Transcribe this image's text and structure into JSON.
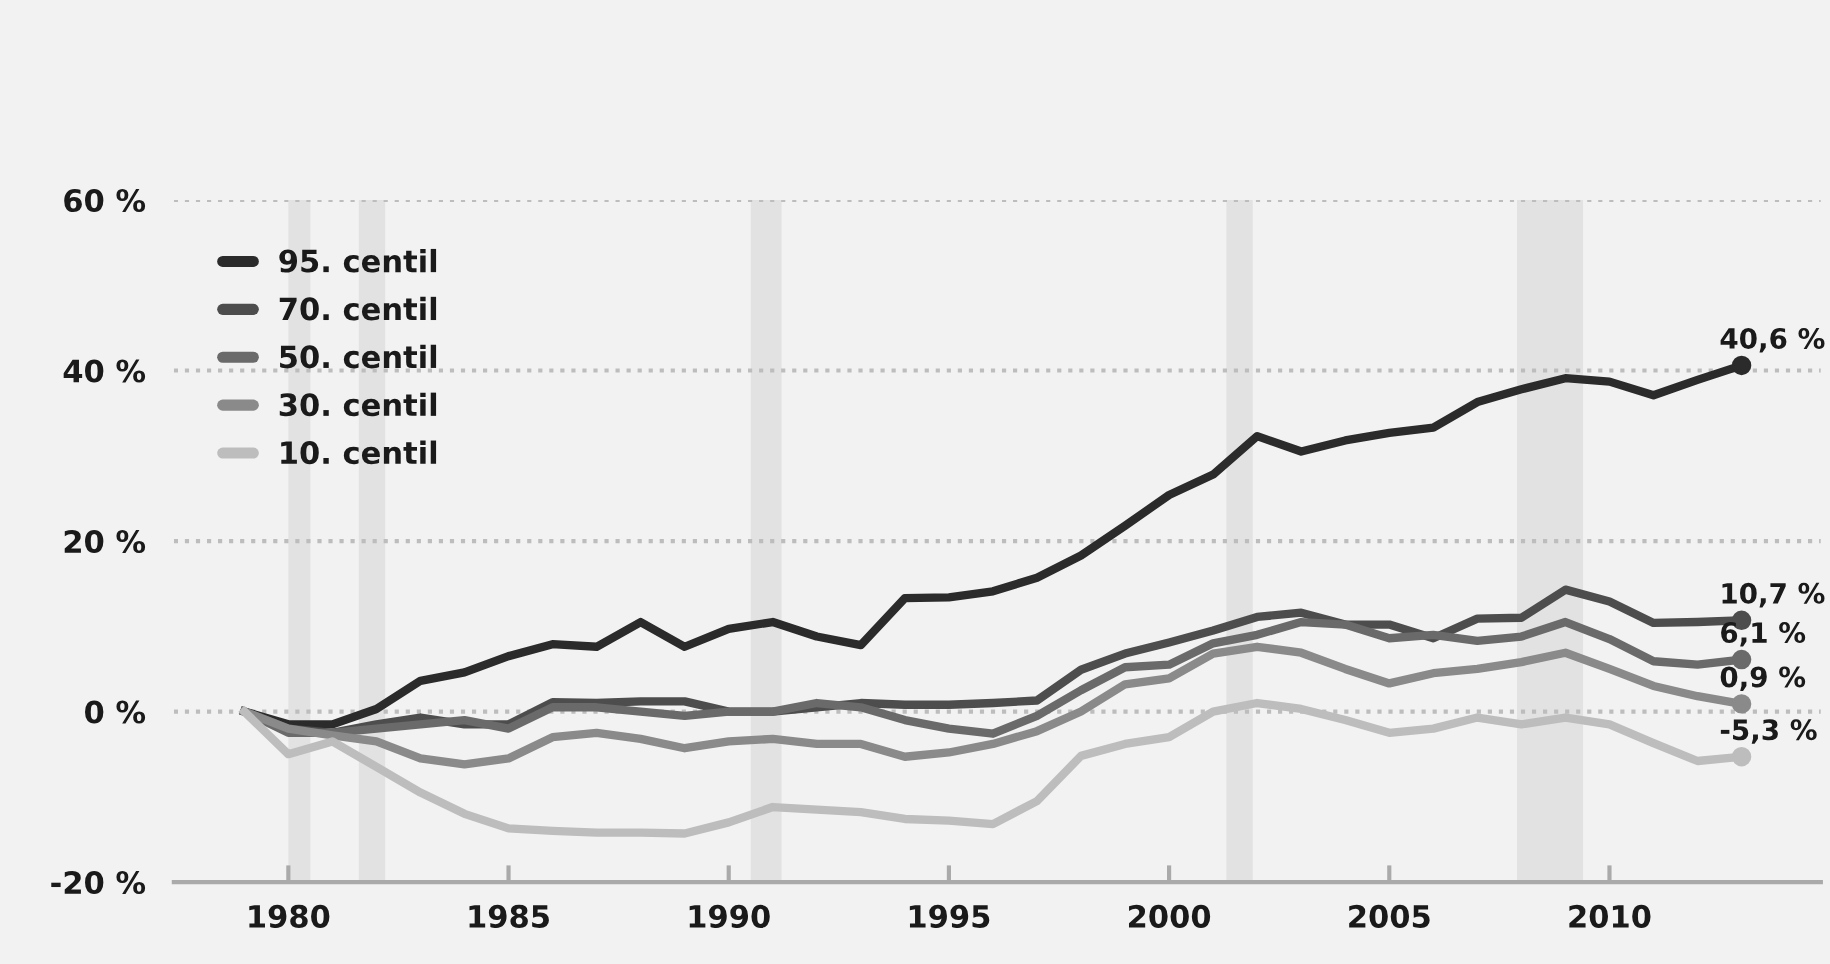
{
  "chart_data": {
    "type": "line",
    "x": [
      1979,
      1980,
      1981,
      1982,
      1983,
      1984,
      1985,
      1986,
      1987,
      1988,
      1989,
      1990,
      1991,
      1992,
      1993,
      1994,
      1995,
      1996,
      1997,
      1998,
      1999,
      2000,
      2001,
      2002,
      2003,
      2004,
      2005,
      2006,
      2007,
      2008,
      2009,
      2010,
      2011,
      2012,
      2013
    ],
    "series": [
      {
        "name": "95. centil",
        "color": "#2b2b2b",
        "values": [
          0,
          -1.5,
          -1.5,
          0.3,
          3.6,
          4.6,
          6.5,
          7.9,
          7.6,
          10.5,
          7.6,
          9.7,
          10.5,
          8.8,
          7.8,
          13.3,
          13.4,
          14.1,
          15.7,
          18.3,
          21.8,
          25.4,
          27.8,
          32.3,
          30.5,
          31.8,
          32.7,
          33.3,
          36.3,
          37.8,
          39.1,
          38.7,
          37.1,
          38.9,
          40.6
        ],
        "value_labels": [
          null,
          null,
          null,
          null,
          null,
          null,
          null,
          null,
          null,
          null,
          null,
          null,
          null,
          null,
          null,
          null,
          null,
          null,
          null,
          null,
          null,
          null,
          null,
          null,
          null,
          null,
          null,
          null,
          null,
          null,
          null,
          null,
          null,
          null,
          "40,6 %"
        ]
      },
      {
        "name": "70. centil",
        "color": "#4d4d4d",
        "values": [
          0,
          -2,
          -2.5,
          -1.5,
          -0.7,
          -1.5,
          -1.5,
          1.1,
          1,
          1.2,
          1.2,
          0,
          0,
          0.5,
          1,
          0.8,
          0.8,
          1,
          1.3,
          4.9,
          6.8,
          8.1,
          9.5,
          11.1,
          11.6,
          10.2,
          10.2,
          8.6,
          10.9,
          11,
          14.3,
          12.9,
          10.4,
          10.5,
          10.7
        ],
        "value_labels": [
          null,
          null,
          null,
          null,
          null,
          null,
          null,
          null,
          null,
          null,
          null,
          null,
          null,
          null,
          null,
          null,
          null,
          null,
          null,
          null,
          null,
          null,
          null,
          null,
          null,
          null,
          null,
          null,
          null,
          null,
          null,
          null,
          null,
          null,
          "10,7 %"
        ]
      },
      {
        "name": "50. centil",
        "color": "#6a6a6a",
        "values": [
          0,
          -2.5,
          -2.5,
          -2,
          -1.5,
          -1,
          -2,
          0.5,
          0.5,
          0,
          -0.5,
          0,
          0,
          1,
          0.5,
          -1,
          -2,
          -2.6,
          -0.5,
          2.5,
          5.2,
          5.5,
          8,
          9,
          10.5,
          10.2,
          8.6,
          9,
          8.3,
          8.8,
          10.5,
          8.5,
          5.9,
          5.5,
          6.1
        ],
        "value_labels": [
          null,
          null,
          null,
          null,
          null,
          null,
          null,
          null,
          null,
          null,
          null,
          null,
          null,
          null,
          null,
          null,
          null,
          null,
          null,
          null,
          null,
          null,
          null,
          null,
          null,
          null,
          null,
          null,
          null,
          null,
          null,
          null,
          null,
          null,
          "6,1 %"
        ]
      },
      {
        "name": "30. centil",
        "color": "#8a8a8a",
        "values": [
          0,
          -2,
          -2.8,
          -3.5,
          -5.5,
          -6.2,
          -5.5,
          -3,
          -2.5,
          -3.2,
          -4.3,
          -3.5,
          -3.2,
          -3.8,
          -3.8,
          -5.3,
          -4.8,
          -3.8,
          -2.3,
          0,
          3.2,
          3.9,
          6.8,
          7.6,
          6.9,
          5,
          3.3,
          4.5,
          5,
          5.8,
          6.9,
          5,
          3,
          1.8,
          0.9
        ],
        "value_labels": [
          null,
          null,
          null,
          null,
          null,
          null,
          null,
          null,
          null,
          null,
          null,
          null,
          null,
          null,
          null,
          null,
          null,
          null,
          null,
          null,
          null,
          null,
          null,
          null,
          null,
          null,
          null,
          null,
          null,
          null,
          null,
          null,
          null,
          null,
          "0,9 %"
        ]
      },
      {
        "name": "10. centil",
        "color": "#bdbdbd",
        "values": [
          0,
          -5,
          -3.5,
          -6.5,
          -9.5,
          -12,
          -13.7,
          -14,
          -14.2,
          -14.2,
          -14.3,
          -13,
          -11.2,
          -11.5,
          -11.8,
          -12.6,
          -12.8,
          -13.2,
          -10.5,
          -5.2,
          -3.8,
          -3,
          0,
          1,
          0.3,
          -1,
          -2.5,
          -2,
          -0.7,
          -1.5,
          -0.7,
          -1.5,
          -3.7,
          -5.8,
          -5.3
        ],
        "value_labels": [
          null,
          null,
          null,
          null,
          null,
          null,
          null,
          null,
          null,
          null,
          null,
          null,
          null,
          null,
          null,
          null,
          null,
          null,
          null,
          null,
          null,
          null,
          null,
          null,
          null,
          null,
          null,
          null,
          null,
          null,
          null,
          null,
          null,
          null,
          "-5,3 %"
        ]
      }
    ],
    "xlim": [
      1977.4,
      2014.8
    ],
    "xticks": [
      1980,
      1985,
      1990,
      1995,
      2000,
      2005,
      2010
    ],
    "ylim": [
      -20,
      60
    ],
    "yticks": [
      {
        "value": -20,
        "label": "-20 %"
      },
      {
        "value": 0,
        "label": "0 %"
      },
      {
        "value": 20,
        "label": "20 %"
      },
      {
        "value": 40,
        "label": "40 %"
      },
      {
        "value": 60,
        "label": "60 %"
      }
    ],
    "bands": [
      {
        "axis": "x",
        "from": 1980.0,
        "to": 1980.5,
        "color": "#e2e2e2"
      },
      {
        "axis": "x",
        "from": 1981.6,
        "to": 1982.2,
        "color": "#e2e2e2"
      },
      {
        "axis": "x",
        "from": 1990.5,
        "to": 1991.2,
        "color": "#e2e2e2"
      },
      {
        "axis": "x",
        "from": 2001.3,
        "to": 2001.9,
        "color": "#e2e2e2"
      },
      {
        "axis": "x",
        "from": 2007.9,
        "to": 2009.4,
        "color": "#e2e2e2"
      }
    ],
    "grid": "y",
    "legend": "top left",
    "line_style": "solid"
  }
}
